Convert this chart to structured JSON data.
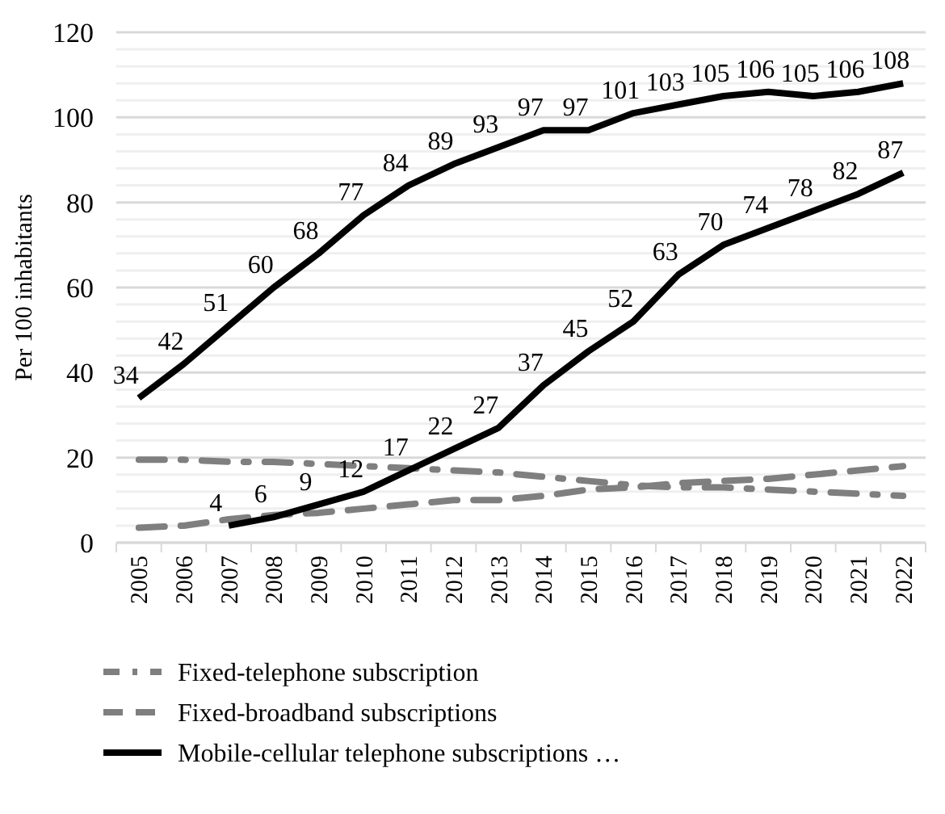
{
  "chart_data": {
    "type": "line",
    "ylabel": "Per 100 inhabitants",
    "categories": [
      "2005",
      "2006",
      "2007",
      "2008",
      "2009",
      "2010",
      "2011",
      "2012",
      "2013",
      "2014",
      "2015",
      "2016",
      "2017",
      "2018",
      "2019",
      "2020",
      "2021",
      "2022"
    ],
    "ylim": [
      0,
      120
    ],
    "yticks": [
      0,
      {
        "value": 4,
        "label": null
      },
      {
        "value": 8,
        "label": null
      },
      {
        "value": 12,
        "label": null
      },
      {
        "value": 16,
        "label": null
      },
      20,
      {
        "value": 24,
        "label": null
      },
      {
        "value": 28,
        "label": null
      },
      {
        "value": 32,
        "label": null
      },
      {
        "value": 36,
        "label": null
      },
      40,
      {
        "value": 44,
        "label": null
      },
      {
        "value": 48,
        "label": null
      },
      {
        "value": 52,
        "label": null
      },
      {
        "value": 56,
        "label": null
      },
      60,
      {
        "value": 64,
        "label": null
      },
      {
        "value": 68,
        "label": null
      },
      {
        "value": 72,
        "label": null
      },
      {
        "value": 76,
        "label": null
      },
      80,
      {
        "value": 84,
        "label": null
      },
      {
        "value": 88,
        "label": null
      },
      {
        "value": 92,
        "label": null
      },
      {
        "value": 96,
        "label": null
      },
      100,
      {
        "value": 104,
        "label": null
      },
      {
        "value": 108,
        "label": null
      },
      {
        "value": 112,
        "label": null
      },
      {
        "value": 116,
        "label": null
      },
      120
    ],
    "grid": "y",
    "legend": "bottom",
    "marker": "none",
    "series": [
      {
        "name": "Fixed-telephone subscription",
        "color": "#7f7f7f",
        "line_style": "dashdot",
        "values": [
          19.5,
          19.5,
          19,
          19,
          18.5,
          18,
          17.5,
          17,
          16.5,
          15.5,
          14.5,
          13.5,
          13,
          13,
          12.5,
          12,
          11.5,
          11
        ]
      },
      {
        "name": "Fixed-broadband subscriptions",
        "color": "#7f7f7f",
        "line_style": "dashed",
        "values": [
          3.5,
          4,
          5.5,
          6.5,
          7,
          8,
          9,
          10,
          10,
          11,
          12.5,
          13,
          14,
          14.5,
          15,
          16,
          17,
          18
        ]
      },
      {
        "name": "Mobile-cellular telephone subscriptions …",
        "color": "#000000",
        "line_style": "solid",
        "values": [
          34,
          42,
          51,
          60,
          68,
          77,
          84,
          89,
          93,
          97,
          97,
          101,
          103,
          105,
          106,
          105,
          106,
          108
        ],
        "value_labels": [
          "34",
          "42",
          "51",
          "60",
          "68",
          "77",
          "84",
          "89",
          "93",
          "97",
          "97",
          "101",
          "103",
          "105",
          "106",
          "105",
          "106",
          "108"
        ]
      },
      {
        "color": "#000000",
        "line_style": "solid",
        "values": [
          null,
          null,
          4,
          6,
          9,
          12,
          17,
          22,
          27,
          37,
          45,
          52,
          63,
          70,
          74,
          78,
          82,
          87
        ],
        "value_labels": [
          null,
          null,
          "4",
          "6",
          "9",
          "12",
          "17",
          "22",
          "27",
          "37",
          "45",
          "52",
          "63",
          "70",
          "74",
          "78",
          "82",
          "87"
        ]
      }
    ]
  }
}
